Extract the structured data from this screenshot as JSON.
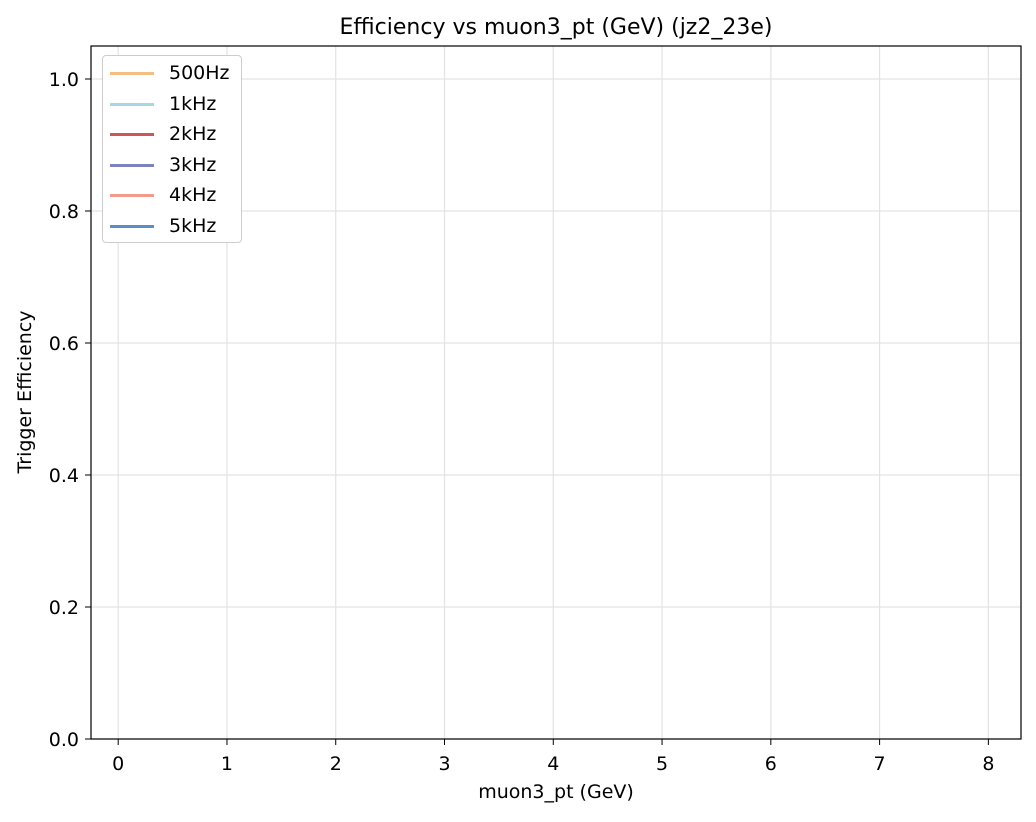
{
  "chart_data": {
    "type": "line",
    "title": "Efficiency vs muon3_pt (GeV) (jz2_23e)",
    "xlabel": "muon3_pt (GeV)",
    "ylabel": "Trigger Efficiency",
    "xlim": [
      -0.25,
      8.3
    ],
    "ylim": [
      0.0,
      1.05
    ],
    "x_ticks": [
      0,
      1,
      2,
      3,
      4,
      5,
      6,
      7,
      8
    ],
    "x_tick_labels": [
      "0",
      "1",
      "2",
      "3",
      "4",
      "5",
      "6",
      "7",
      "8"
    ],
    "y_ticks": [
      0.0,
      0.2,
      0.4,
      0.6,
      0.8,
      1.0
    ],
    "y_tick_labels": [
      "0.0",
      "0.2",
      "0.4",
      "0.6",
      "0.8",
      "1.0"
    ],
    "grid": true,
    "legend_position": "top-left",
    "series": [
      {
        "name": "500Hz",
        "color": "#f4bf84",
        "x": [],
        "y": []
      },
      {
        "name": "1kHz",
        "color": "#a6d8e3",
        "x": [],
        "y": []
      },
      {
        "name": "2kHz",
        "color": "#cd5555",
        "x": [],
        "y": []
      },
      {
        "name": "3kHz",
        "color": "#7d83be",
        "x": [],
        "y": []
      },
      {
        "name": "4kHz",
        "color": "#f39a8d",
        "x": [],
        "y": []
      },
      {
        "name": "5kHz",
        "color": "#5b8fc4",
        "x": [],
        "y": []
      }
    ]
  }
}
